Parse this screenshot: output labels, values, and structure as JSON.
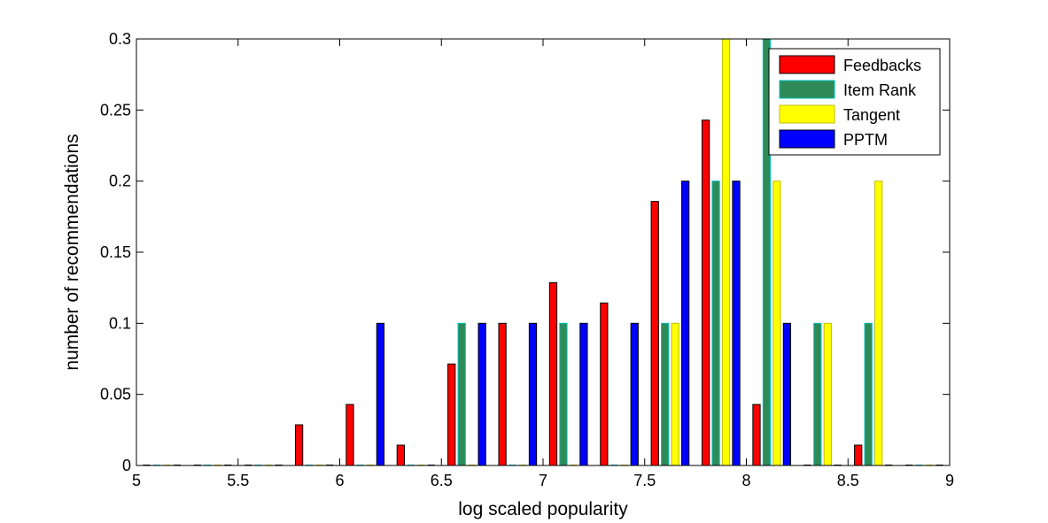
{
  "chart_data": {
    "type": "bar",
    "xlabel": "log scaled popularity",
    "ylabel": "number of recommendations",
    "xlim": [
      5,
      9
    ],
    "ylim": [
      0,
      0.3
    ],
    "xticks": [
      "5",
      "5.5",
      "6",
      "6.5",
      "7",
      "7.5",
      "8",
      "8.5",
      "9"
    ],
    "yticks": [
      "0",
      "0.05",
      "0.1",
      "0.15",
      "0.2",
      "0.25",
      "0.3"
    ],
    "legend_position": "top-right",
    "grid": false,
    "bin_centers": [
      5.125,
      5.375,
      5.625,
      5.875,
      6.125,
      6.375,
      6.625,
      6.875,
      7.125,
      7.375,
      7.625,
      7.875,
      8.125,
      8.375,
      8.625,
      8.875
    ],
    "series": [
      {
        "name": "Feedbacks",
        "color": "#ff0000",
        "edge": "#000000",
        "values": [
          0,
          0,
          0,
          0.0286,
          0.0429,
          0.0143,
          0.0714,
          0.1,
          0.1286,
          0.1143,
          0.1857,
          0.2429,
          0.0429,
          0,
          0.0143,
          0
        ]
      },
      {
        "name": "Item Rank",
        "color": "#2e8b57",
        "edge": "#00bfbf",
        "values": [
          0,
          0,
          0,
          0,
          0,
          0,
          0.1,
          0,
          0.1,
          0,
          0.1,
          0.2,
          0.3,
          0.1,
          0.1,
          0
        ]
      },
      {
        "name": "Tangent",
        "color": "#ffff00",
        "edge": "#bfbf00",
        "values": [
          0,
          0,
          0,
          0,
          0,
          0,
          0,
          0,
          0,
          0,
          0.1,
          0.3,
          0.2,
          0.1,
          0.2,
          0
        ]
      },
      {
        "name": "PPTM",
        "color": "#0000ff",
        "edge": "#000000",
        "values": [
          0,
          0,
          0,
          0,
          0.1,
          0,
          0.1,
          0.1,
          0.1,
          0.1,
          0.2,
          0.2,
          0.1,
          0,
          0,
          0
        ]
      }
    ]
  }
}
